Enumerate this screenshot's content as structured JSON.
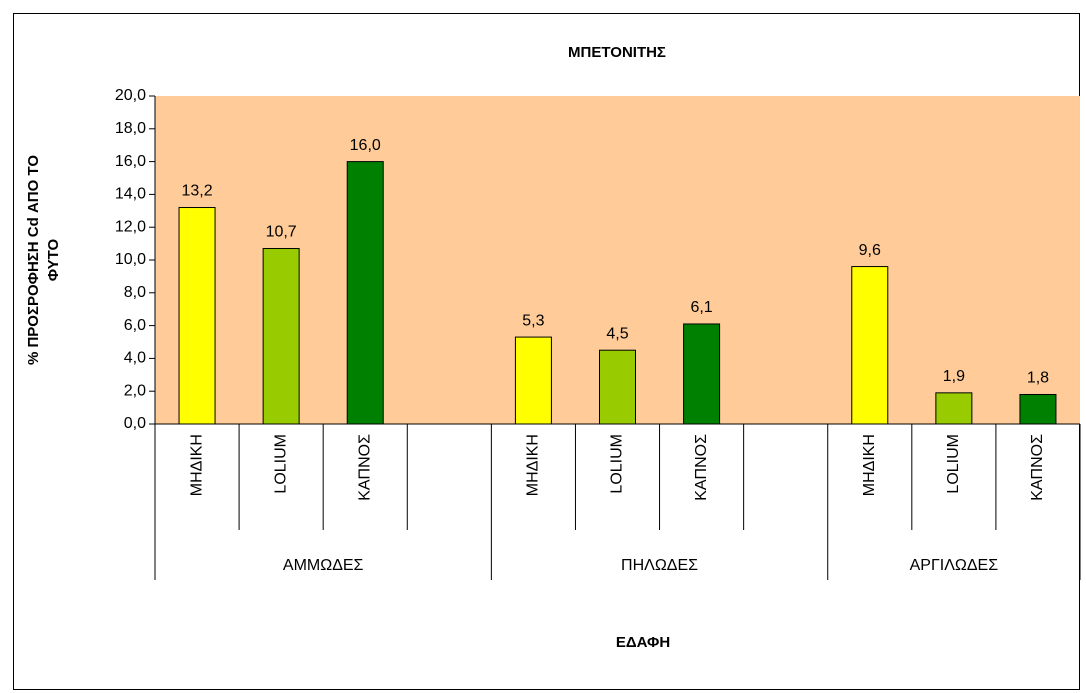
{
  "chart_data": {
    "type": "bar",
    "title": "ΜΠΕΤΟΝΙΤΗΣ",
    "y_label": [
      "% ΠΡΟΣΡΟΦΗΣΗ Cd ΑΠΟ ΤΟ",
      "ΦΥΤΟ"
    ],
    "x_label": "ΕΔΑΦΗ",
    "groups": [
      {
        "name": "ΑΜΜΩΔΕΣ",
        "categories": [
          "ΜΗΔΙΚΗ",
          "LOLIUM",
          "ΚΑΠΝΟΣ",
          null
        ],
        "values": [
          13.2,
          10.7,
          16.0,
          null
        ],
        "value_labels": [
          "13,2",
          "10,7",
          "16,0",
          null
        ],
        "colors": [
          "#ffff00",
          "#99cc00",
          "#008000",
          null
        ]
      },
      {
        "name": "ΠΗΛΩΔΕΣ",
        "categories": [
          "ΜΗΔΙΚΗ",
          "LOLIUM",
          "ΚΑΠΝΟΣ",
          null
        ],
        "values": [
          5.3,
          4.5,
          6.1,
          null
        ],
        "value_labels": [
          "5,3",
          "4,5",
          "6,1",
          null
        ],
        "colors": [
          "#ffff00",
          "#99cc00",
          "#008000",
          null
        ]
      },
      {
        "name": "ΑΡΓΙΛΩΔΕΣ",
        "categories": [
          "ΜΗΔΙΚΗ",
          "LOLIUM",
          "ΚΑΠΝΟΣ"
        ],
        "values": [
          9.6,
          1.9,
          1.8
        ],
        "value_labels": [
          "9,6",
          "1,9",
          "1,8"
        ],
        "colors": [
          "#ffff00",
          "#99cc00",
          "#008000"
        ]
      }
    ],
    "ylim": [
      0,
      20
    ],
    "yticks": [
      {
        "value": 0,
        "label": "0,0"
      },
      {
        "value": 2,
        "label": "2,0"
      },
      {
        "value": 4,
        "label": "4,0"
      },
      {
        "value": 6,
        "label": "6,0"
      },
      {
        "value": 8,
        "label": "8,0"
      },
      {
        "value": 10,
        "label": "10,0"
      },
      {
        "value": 12,
        "label": "12,0"
      },
      {
        "value": 14,
        "label": "14,0"
      },
      {
        "value": 16,
        "label": "16,0"
      },
      {
        "value": 18,
        "label": "18,0"
      },
      {
        "value": 20,
        "label": "20,0"
      }
    ],
    "plot_background": "#ffcc99"
  }
}
